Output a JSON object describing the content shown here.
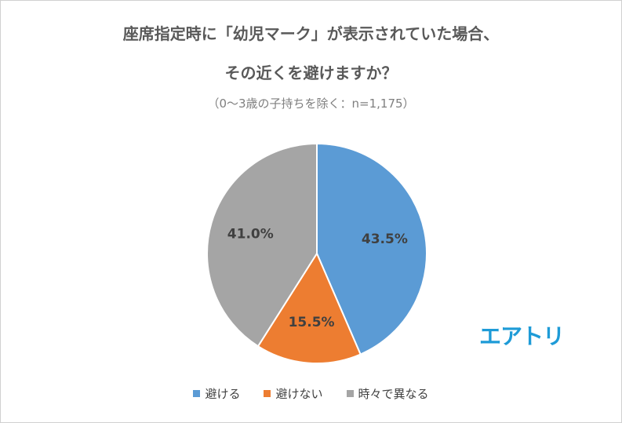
{
  "chart_data": {
    "type": "pie",
    "title_line1": "座席指定時に「幼児マーク」が表示されていた場合、",
    "title_line2": "その近くを避けますか？",
    "subtitle": "（0～3歳の子持ちを除く：n=1,175）",
    "categories": [
      "避ける",
      "避けない",
      "時々で異なる"
    ],
    "values": [
      43.5,
      15.5,
      41.0
    ],
    "labels": [
      "43.5%",
      "15.5%",
      "41.0%"
    ],
    "colors": [
      "#5b9bd5",
      "#ed7d31",
      "#a5a5a5"
    ],
    "legend_position": "bottom"
  },
  "logo_text": "エアトリ"
}
